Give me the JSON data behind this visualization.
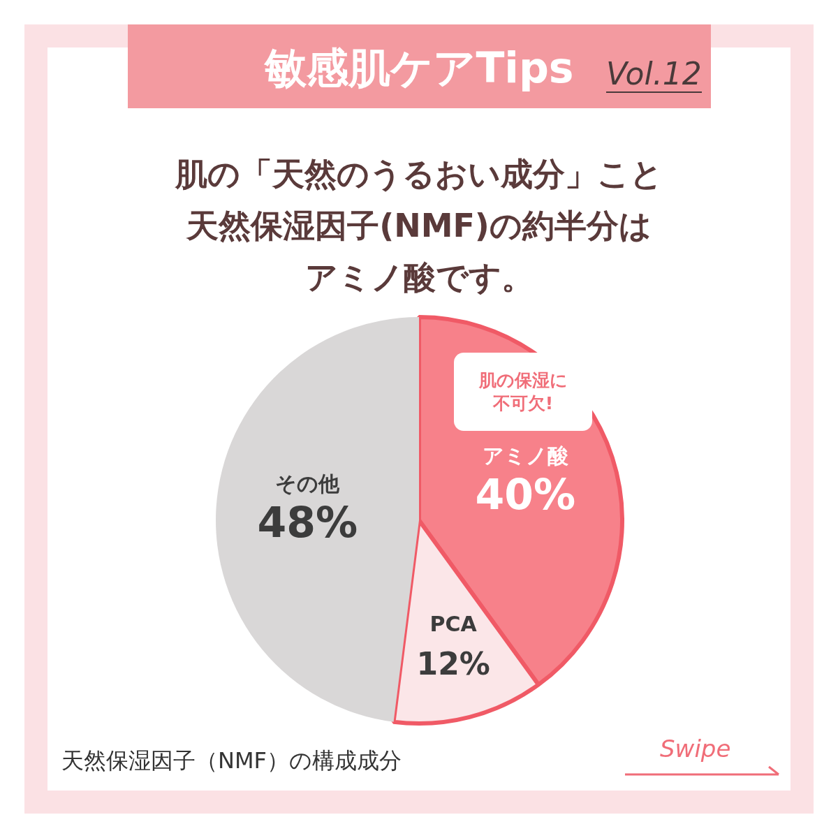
{
  "chart_data": {
    "type": "pie",
    "title": "敏感肌ケアTips",
    "subtitle": "肌の「天然のうるおい成分」こと天然保湿因子(NMF)の約半分はアミノ酸です。",
    "categories": [
      "アミノ酸",
      "PCA",
      "その他"
    ],
    "values": [
      40,
      12,
      48
    ],
    "value_labels": [
      "40%",
      "12%",
      "48%"
    ],
    "colors": [
      "#f7818a",
      "#fbe6e8",
      "#d9d7d7"
    ],
    "legend": false,
    "annotations": [
      "Vol.12",
      "肌の保湿に不可欠!",
      "天然保湿因子（NMF）の構成成分",
      "Swipe"
    ]
  }
}
